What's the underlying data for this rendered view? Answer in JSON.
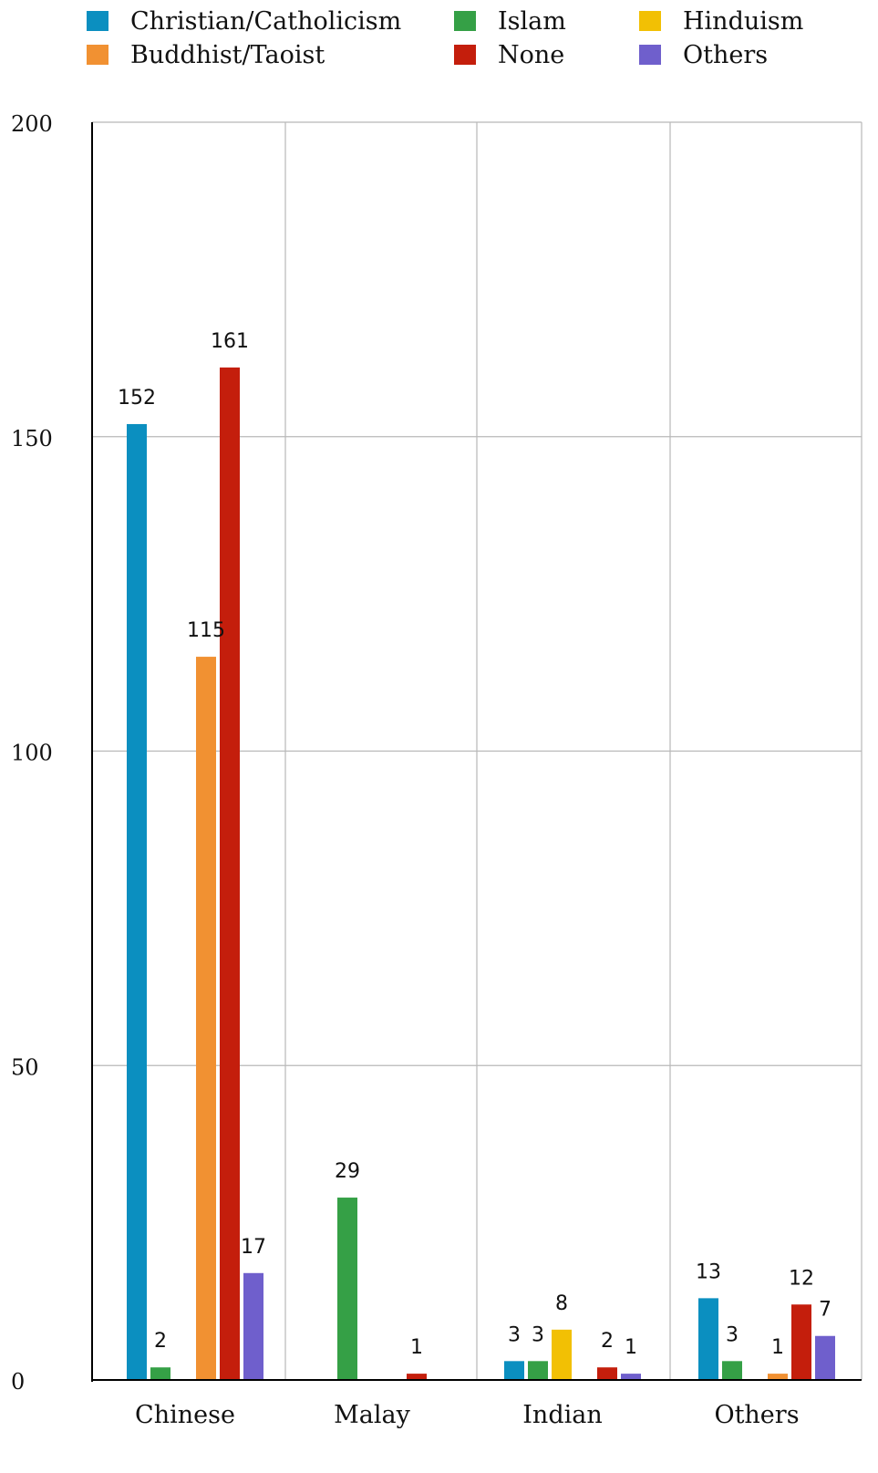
{
  "chart_data": {
    "type": "bar",
    "title": "",
    "xlabel": "",
    "ylabel": "",
    "ylim": [
      0,
      200
    ],
    "yticks": [
      0,
      50,
      100,
      150,
      200
    ],
    "ytick_labels": [
      "0",
      "50",
      "100",
      "150",
      "200"
    ],
    "grid": true,
    "legend_placement": "top",
    "categories": [
      "Chinese",
      "Malay",
      "Indian",
      "Others"
    ],
    "series": [
      {
        "name": "Christian/Catholicism",
        "color": "#0b8fc0",
        "values": [
          152,
          0,
          3,
          13
        ],
        "labels": [
          "152",
          "",
          "3",
          "13"
        ]
      },
      {
        "name": "Islam",
        "color": "#35a046",
        "values": [
          2,
          29,
          3,
          3
        ],
        "labels": [
          "2",
          "29",
          "3",
          "3"
        ]
      },
      {
        "name": "Hinduism",
        "color": "#f2c004",
        "values": [
          0,
          0,
          8,
          0
        ],
        "labels": [
          "",
          "",
          "8",
          ""
        ]
      },
      {
        "name": "Buddhist/Taoist",
        "color": "#f19132",
        "values": [
          115,
          0,
          0,
          1
        ],
        "labels": [
          "115",
          "",
          "",
          "1"
        ]
      },
      {
        "name": "None",
        "color": "#c41e0c",
        "values": [
          161,
          1,
          2,
          12
        ],
        "labels": [
          "161",
          "1",
          "2",
          "12"
        ]
      },
      {
        "name": "Others",
        "color": "#6f5fcc",
        "values": [
          17,
          0,
          1,
          7
        ],
        "labels": [
          "17",
          "",
          "1",
          "7"
        ]
      }
    ],
    "legend_order": [
      0,
      1,
      2,
      3,
      4,
      5
    ]
  }
}
